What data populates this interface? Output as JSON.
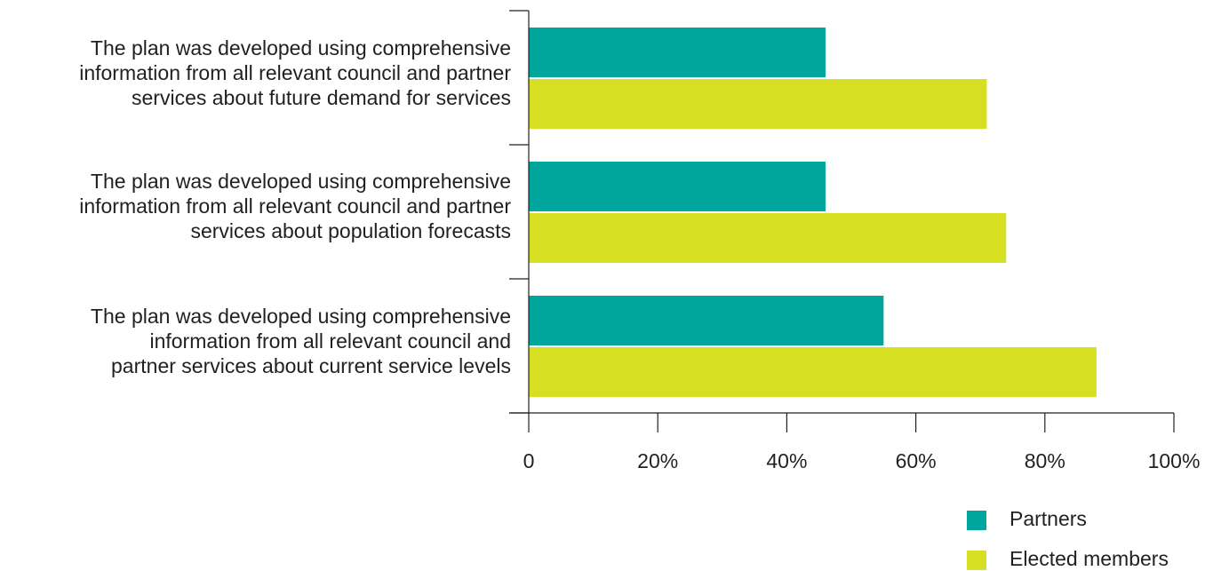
{
  "chart_data": {
    "type": "bar",
    "orientation": "horizontal",
    "categories": [
      [
        "The plan was developed using comprehensive",
        "information from all relevant council and partner",
        "services about future demand for services"
      ],
      [
        "The plan was developed using comprehensive",
        "information from all relevant council and partner",
        "services about population forecasts"
      ],
      [
        "The plan was developed using comprehensive",
        "information from all relevant council and",
        "partner services about current service levels"
      ]
    ],
    "series": [
      {
        "name": "Partners",
        "color": "#00a69c",
        "values": [
          46,
          46,
          55
        ]
      },
      {
        "name": "Elected members",
        "color": "#d7df23",
        "values": [
          71,
          74,
          88
        ]
      }
    ],
    "xlim": [
      0,
      100
    ],
    "xticks": [
      0,
      20,
      40,
      60,
      80,
      100
    ],
    "xtick_labels": [
      "0",
      "20%",
      "40%",
      "60%",
      "80%",
      "100%"
    ],
    "grid": false,
    "legend_position": "bottom-right"
  }
}
